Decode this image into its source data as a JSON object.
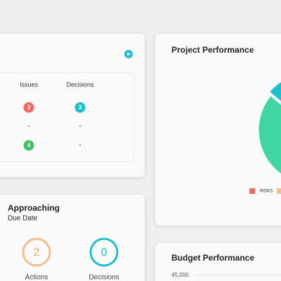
{
  "status_table": {
    "headers": [
      "Issues",
      "Decisions"
    ],
    "rows": [
      [
        "3",
        "3"
      ],
      [
        "-",
        "-"
      ],
      [
        "4",
        "-"
      ]
    ]
  },
  "due_date": {
    "title": "Approaching",
    "subtitle": "Due Date",
    "items": [
      {
        "count": "2",
        "label": "Actions"
      },
      {
        "count": "0",
        "label": "Decisions"
      }
    ]
  },
  "project_performance": {
    "title": "Project Performance",
    "legend": [
      "RISKS"
    ]
  },
  "budget_performance": {
    "title": "Budget Performance",
    "yticks": [
      {
        "value": 45000,
        "label": "45,000"
      }
    ]
  }
}
